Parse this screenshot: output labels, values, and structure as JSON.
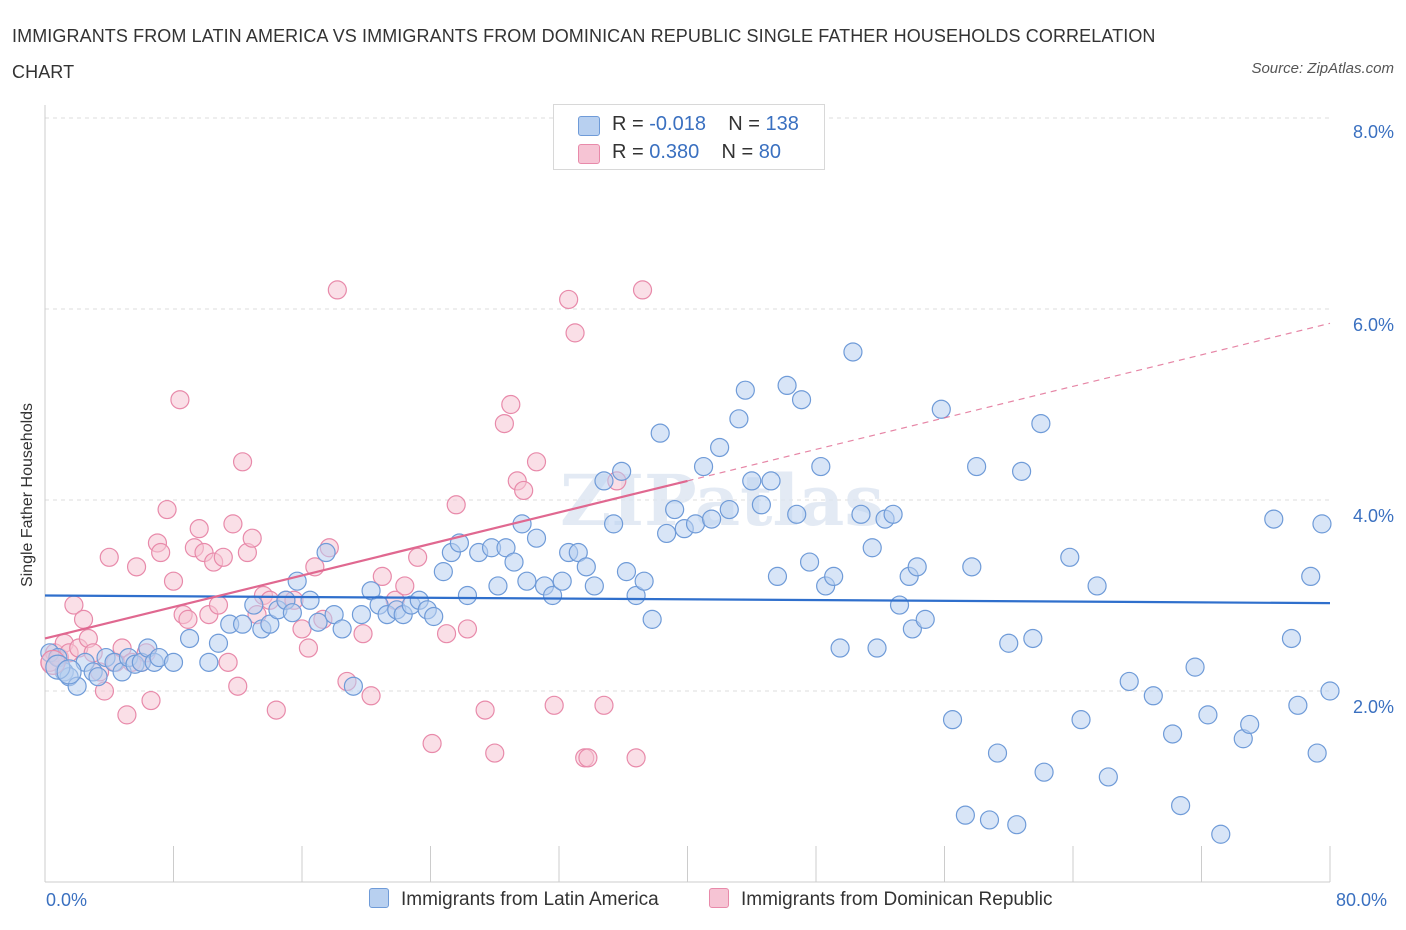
{
  "title": "IMMIGRANTS FROM LATIN AMERICA VS IMMIGRANTS FROM DOMINICAN REPUBLIC SINGLE FATHER HOUSEHOLDS CORRELATION CHART",
  "source": "Source: ZipAtlas.com",
  "watermark": "ZIPatlas",
  "legend": {
    "series1": {
      "r_label": "R =",
      "r_value": "-0.018",
      "n_label": "N =",
      "n_value": "138"
    },
    "series2": {
      "r_label": "R =",
      "r_value": "0.380",
      "n_label": "N =",
      "n_value": "80"
    }
  },
  "colors": {
    "blue_fill": "#b8d0f0",
    "blue_stroke": "#6f9bd8",
    "blue_line": "#2f6fcc",
    "pink_fill": "#f6c4d4",
    "pink_stroke": "#e88aaa",
    "pink_line": "#e06890",
    "axis_text": "#3a70c0",
    "grid": "#dddddd"
  },
  "chart_data": {
    "type": "scatter",
    "title": "IMMIGRANTS FROM LATIN AMERICA VS IMMIGRANTS FROM DOMINICAN REPUBLIC SINGLE FATHER HOUSEHOLDS CORRELATION CHART",
    "xlabel": "",
    "ylabel": "Single Father Households",
    "xlim": [
      0,
      80
    ],
    "ylim": [
      0,
      8.3
    ],
    "x_tick_labels": [
      "0.0%",
      "80.0%"
    ],
    "y_ticks": [
      2,
      4,
      6,
      8
    ],
    "y_tick_labels": [
      "2.0%",
      "4.0%",
      "6.0%",
      "8.0%"
    ],
    "grid": true,
    "legend_position": "top-center",
    "series": [
      {
        "name": "Immigrants from Latin America",
        "color": "blue",
        "trend": {
          "x": [
            0,
            80
          ],
          "y": [
            3.0,
            2.92
          ],
          "style": "solid"
        },
        "points": [
          [
            0.3,
            2.4
          ],
          [
            0.8,
            2.35
          ],
          [
            1.2,
            2.2
          ],
          [
            1.5,
            2.15
          ],
          [
            2.0,
            2.05
          ],
          [
            2.5,
            2.3
          ],
          [
            3.0,
            2.2
          ],
          [
            3.3,
            2.15
          ],
          [
            3.8,
            2.35
          ],
          [
            4.3,
            2.3
          ],
          [
            4.8,
            2.2
          ],
          [
            5.2,
            2.35
          ],
          [
            5.6,
            2.28
          ],
          [
            6.0,
            2.3
          ],
          [
            6.4,
            2.45
          ],
          [
            6.8,
            2.3
          ],
          [
            7.1,
            2.35
          ],
          [
            8.0,
            2.3
          ],
          [
            9.0,
            2.55
          ],
          [
            10.2,
            2.3
          ],
          [
            10.8,
            2.5
          ],
          [
            11.5,
            2.7
          ],
          [
            12.3,
            2.7
          ],
          [
            13.0,
            2.9
          ],
          [
            13.5,
            2.65
          ],
          [
            14.0,
            2.7
          ],
          [
            14.5,
            2.85
          ],
          [
            15.0,
            2.95
          ],
          [
            15.4,
            2.82
          ],
          [
            15.7,
            3.15
          ],
          [
            16.5,
            2.95
          ],
          [
            17.0,
            2.72
          ],
          [
            17.5,
            3.45
          ],
          [
            18.0,
            2.8
          ],
          [
            18.5,
            2.65
          ],
          [
            19.2,
            2.05
          ],
          [
            19.7,
            2.8
          ],
          [
            20.3,
            3.05
          ],
          [
            20.8,
            2.9
          ],
          [
            21.3,
            2.8
          ],
          [
            21.9,
            2.85
          ],
          [
            22.3,
            2.8
          ],
          [
            22.8,
            2.9
          ],
          [
            23.3,
            2.95
          ],
          [
            23.8,
            2.85
          ],
          [
            24.2,
            2.78
          ],
          [
            24.8,
            3.25
          ],
          [
            25.3,
            3.45
          ],
          [
            25.8,
            3.55
          ],
          [
            26.3,
            3.0
          ],
          [
            27.0,
            3.45
          ],
          [
            27.8,
            3.5
          ],
          [
            28.2,
            3.1
          ],
          [
            28.7,
            3.5
          ],
          [
            29.2,
            3.35
          ],
          [
            29.7,
            3.75
          ],
          [
            30.0,
            3.15
          ],
          [
            30.6,
            3.6
          ],
          [
            31.1,
            3.1
          ],
          [
            31.6,
            3.0
          ],
          [
            32.2,
            3.15
          ],
          [
            32.6,
            3.45
          ],
          [
            33.2,
            3.45
          ],
          [
            33.7,
            3.3
          ],
          [
            34.2,
            3.1
          ],
          [
            34.8,
            4.2
          ],
          [
            35.4,
            3.75
          ],
          [
            35.9,
            4.3
          ],
          [
            36.2,
            3.25
          ],
          [
            36.8,
            3.0
          ],
          [
            37.3,
            3.15
          ],
          [
            37.8,
            2.75
          ],
          [
            38.3,
            4.7
          ],
          [
            38.7,
            3.65
          ],
          [
            39.2,
            3.9
          ],
          [
            39.8,
            3.7
          ],
          [
            40.5,
            3.75
          ],
          [
            41.0,
            4.35
          ],
          [
            41.5,
            3.8
          ],
          [
            42.0,
            4.55
          ],
          [
            42.6,
            3.9
          ],
          [
            43.2,
            4.85
          ],
          [
            43.6,
            5.15
          ],
          [
            44.0,
            4.2
          ],
          [
            44.6,
            3.95
          ],
          [
            45.2,
            4.2
          ],
          [
            45.6,
            3.2
          ],
          [
            46.2,
            5.2
          ],
          [
            46.8,
            3.85
          ],
          [
            47.1,
            5.05
          ],
          [
            47.6,
            3.35
          ],
          [
            48.3,
            4.35
          ],
          [
            48.6,
            3.1
          ],
          [
            49.1,
            3.2
          ],
          [
            49.5,
            2.45
          ],
          [
            50.3,
            5.55
          ],
          [
            50.8,
            3.85
          ],
          [
            51.5,
            3.5
          ],
          [
            51.8,
            2.45
          ],
          [
            52.3,
            3.8
          ],
          [
            52.8,
            3.85
          ],
          [
            53.2,
            2.9
          ],
          [
            53.8,
            3.2
          ],
          [
            54.0,
            2.65
          ],
          [
            54.3,
            3.3
          ],
          [
            54.8,
            2.75
          ],
          [
            55.8,
            4.95
          ],
          [
            56.5,
            1.7
          ],
          [
            57.3,
            0.7
          ],
          [
            57.7,
            3.3
          ],
          [
            58.0,
            4.35
          ],
          [
            58.8,
            0.65
          ],
          [
            59.3,
            1.35
          ],
          [
            60.0,
            2.5
          ],
          [
            60.5,
            0.6
          ],
          [
            60.8,
            4.3
          ],
          [
            61.5,
            2.55
          ],
          [
            62.0,
            4.8
          ],
          [
            62.2,
            1.15
          ],
          [
            63.8,
            3.4
          ],
          [
            64.5,
            1.7
          ],
          [
            65.5,
            3.1
          ],
          [
            66.2,
            1.1
          ],
          [
            67.5,
            2.1
          ],
          [
            69.0,
            1.95
          ],
          [
            70.2,
            1.55
          ],
          [
            70.7,
            0.8
          ],
          [
            71.6,
            2.25
          ],
          [
            72.4,
            1.75
          ],
          [
            73.2,
            0.5
          ],
          [
            74.6,
            1.5
          ],
          [
            75.0,
            1.65
          ],
          [
            76.5,
            3.8
          ],
          [
            77.6,
            2.55
          ],
          [
            78.0,
            1.85
          ],
          [
            78.8,
            3.2
          ],
          [
            79.2,
            1.35
          ],
          [
            79.5,
            3.75
          ],
          [
            80.0,
            2.0
          ]
        ]
      },
      {
        "name": "Immigrants from Dominican Republic",
        "color": "pink",
        "trend": {
          "x": [
            0,
            40,
            80
          ],
          "y": [
            2.55,
            4.2,
            5.85
          ],
          "style": "solid to 40, dashed beyond"
        },
        "points": [
          [
            0.3,
            2.3
          ],
          [
            0.6,
            2.4
          ],
          [
            0.9,
            2.35
          ],
          [
            1.2,
            2.5
          ],
          [
            1.5,
            2.4
          ],
          [
            1.8,
            2.9
          ],
          [
            2.1,
            2.45
          ],
          [
            2.4,
            2.75
          ],
          [
            2.7,
            2.55
          ],
          [
            3.0,
            2.4
          ],
          [
            3.4,
            2.2
          ],
          [
            3.7,
            2.0
          ],
          [
            4.0,
            3.4
          ],
          [
            4.4,
            2.3
          ],
          [
            4.8,
            2.45
          ],
          [
            5.1,
            1.75
          ],
          [
            5.4,
            2.3
          ],
          [
            5.7,
            3.3
          ],
          [
            6.0,
            2.3
          ],
          [
            6.3,
            2.4
          ],
          [
            6.6,
            1.9
          ],
          [
            7.0,
            3.55
          ],
          [
            7.2,
            3.45
          ],
          [
            7.6,
            3.9
          ],
          [
            8.0,
            3.15
          ],
          [
            8.4,
            5.05
          ],
          [
            8.6,
            2.8
          ],
          [
            8.9,
            2.75
          ],
          [
            9.3,
            3.5
          ],
          [
            9.6,
            3.7
          ],
          [
            9.9,
            3.45
          ],
          [
            10.2,
            2.8
          ],
          [
            10.5,
            3.35
          ],
          [
            10.8,
            2.9
          ],
          [
            11.1,
            3.4
          ],
          [
            11.4,
            2.3
          ],
          [
            11.7,
            3.75
          ],
          [
            12.0,
            2.05
          ],
          [
            12.3,
            4.4
          ],
          [
            12.6,
            3.45
          ],
          [
            12.9,
            3.6
          ],
          [
            13.2,
            2.8
          ],
          [
            13.6,
            3.0
          ],
          [
            14.0,
            2.95
          ],
          [
            14.4,
            1.8
          ],
          [
            15.0,
            2.95
          ],
          [
            15.5,
            2.95
          ],
          [
            16.0,
            2.65
          ],
          [
            16.4,
            2.45
          ],
          [
            16.8,
            3.3
          ],
          [
            17.3,
            2.75
          ],
          [
            17.7,
            3.5
          ],
          [
            18.2,
            6.2
          ],
          [
            18.8,
            2.1
          ],
          [
            19.8,
            2.6
          ],
          [
            20.3,
            1.95
          ],
          [
            21.0,
            3.2
          ],
          [
            21.8,
            2.95
          ],
          [
            22.4,
            3.1
          ],
          [
            23.2,
            3.4
          ],
          [
            24.1,
            1.45
          ],
          [
            25.0,
            2.6
          ],
          [
            25.6,
            3.95
          ],
          [
            26.3,
            2.65
          ],
          [
            27.4,
            1.8
          ],
          [
            28.0,
            1.35
          ],
          [
            28.6,
            4.8
          ],
          [
            29.0,
            5.0
          ],
          [
            29.4,
            4.2
          ],
          [
            29.8,
            4.1
          ],
          [
            30.6,
            4.4
          ],
          [
            31.7,
            1.85
          ],
          [
            32.6,
            6.1
          ],
          [
            33.0,
            5.75
          ],
          [
            33.6,
            1.3
          ],
          [
            33.8,
            1.3
          ],
          [
            34.8,
            1.85
          ],
          [
            35.6,
            4.2
          ],
          [
            36.8,
            1.3
          ],
          [
            37.2,
            6.2
          ]
        ]
      }
    ]
  },
  "bottom_legend": {
    "series1": "Immigrants from Latin America",
    "series2": "Immigrants from Dominican Republic"
  },
  "axis": {
    "ylabel": "Single Father Households",
    "x_left": "0.0%",
    "x_right": "80.0%",
    "y_8": "8.0%",
    "y_6": "6.0%",
    "y_4": "4.0%",
    "y_2": "2.0%"
  }
}
